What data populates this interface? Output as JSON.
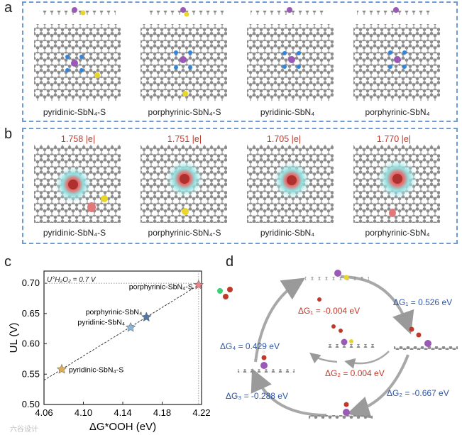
{
  "panel_a": {
    "letter": "a",
    "labels": [
      "pyridinic-SbN₄-S",
      "porphyrinic-SbN₄-S",
      "pyridinic-SbN₄",
      "porphyrinic-SbN₄"
    ]
  },
  "panel_b": {
    "letter": "b",
    "charges": [
      "1.758 |e|",
      "1.751 |e|",
      "1.705 |e|",
      "1.770 |e|"
    ],
    "labels": [
      "pyridinic-SbN₄-S",
      "porphyrinic-SbN₄-S",
      "pyridinic-SbN₄",
      "porphyrinic-SbN₄"
    ]
  },
  "panel_c": {
    "letter": "c",
    "annotation": "U°H₂O₂ = 0.7 V"
  },
  "chart_data": {
    "type": "scatter",
    "title": "",
    "xlabel": "ΔG*OOH (eV)",
    "ylabel": "UL (V)",
    "xlim": [
      4.06,
      4.22
    ],
    "ylim": [
      0.5,
      0.72
    ],
    "xticks": [
      "4.06",
      "4.10",
      "4.14",
      "4.18",
      "4.22"
    ],
    "yticks": [
      "0.50",
      "0.55",
      "0.60",
      "0.65",
      "0.70"
    ],
    "reference_line_y": 0.7,
    "points": [
      {
        "name": "porphyrinic-SbN₄-S",
        "x": 4.217,
        "y": 0.697,
        "color": "#e8848a"
      },
      {
        "name": "porphyrinic-SbN₄",
        "x": 4.164,
        "y": 0.644,
        "color": "#4f78a8"
      },
      {
        "name": "pyridinic-SbN₄",
        "x": 4.148,
        "y": 0.627,
        "color": "#8bb5dc"
      },
      {
        "name": "pyridinic-SbN₄-S",
        "x": 4.078,
        "y": 0.558,
        "color": "#e0ae5a"
      }
    ]
  },
  "panel_d": {
    "letter": "d",
    "cycle_labels": [
      {
        "text": "ΔG₁ = 0.526 eV",
        "color": "#2e55a6"
      },
      {
        "text": "ΔG₂ = -0.667 eV",
        "color": "#2e55a6"
      },
      {
        "text": "ΔG₃ = -0.288 eV",
        "color": "#2e55a6"
      },
      {
        "text": "ΔG₄ = 0.429 eV",
        "color": "#2e55a6"
      }
    ],
    "inner_labels": [
      {
        "text": "ΔG₁ = -0.004 eV",
        "color": "#c0392b"
      },
      {
        "text": "ΔG₂ = 0.004 eV",
        "color": "#c0392b"
      }
    ]
  },
  "watermark": "六谷设计"
}
